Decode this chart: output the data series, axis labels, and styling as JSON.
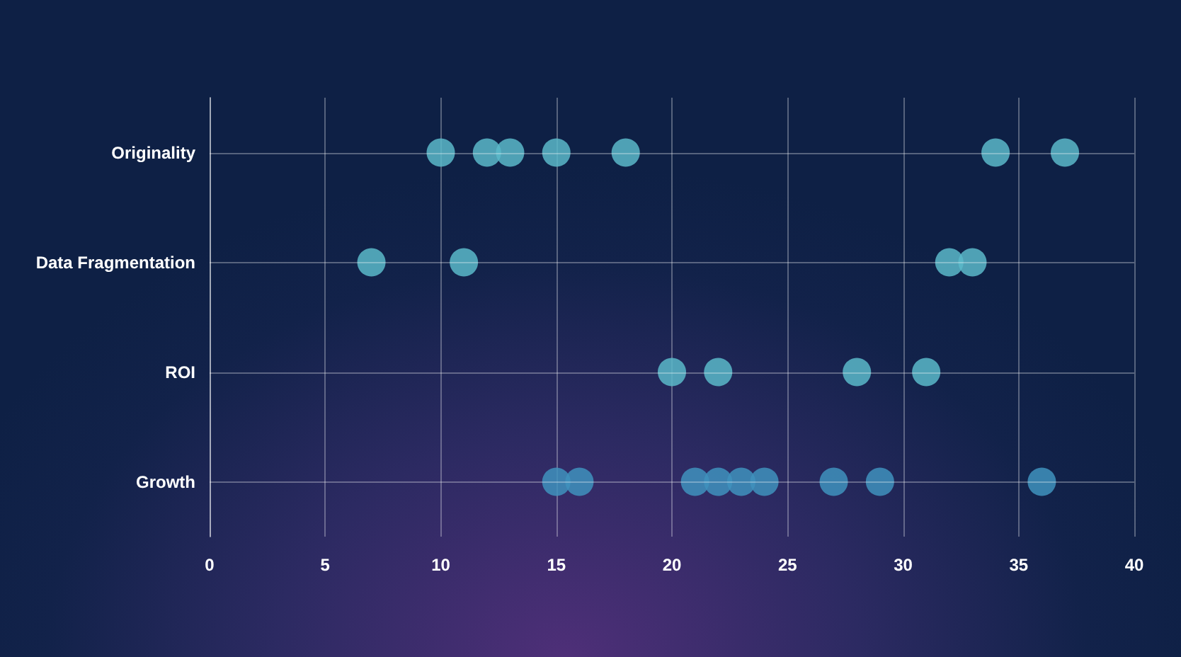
{
  "chart_data": {
    "type": "scatter",
    "orientation": "horizontal",
    "categories": [
      "Originality",
      "Data Fragmentation",
      "ROI",
      "Growth"
    ],
    "series": [
      {
        "color": "#5bb9c9",
        "x": [
          "Originality",
          "Originality",
          "Originality",
          "Originality",
          "Originality",
          "Originality",
          "Originality"
        ],
        "values": [
          10,
          12,
          13,
          15,
          18,
          34,
          37
        ]
      },
      {
        "color": "#5bb9c9",
        "x": [
          "Data Fragmentation",
          "Data Fragmentation",
          "Data Fragmentation",
          "Data Fragmentation"
        ],
        "values": [
          7,
          11,
          32,
          33
        ]
      },
      {
        "color": "#5bb9c9",
        "x": [
          "ROI",
          "ROI",
          "ROI",
          "ROI"
        ],
        "values": [
          20,
          22,
          28,
          31
        ]
      },
      {
        "color": "#3f92bd",
        "x": [
          "Growth",
          "Growth",
          "Growth",
          "Growth",
          "Growth",
          "Growth",
          "Growth",
          "Growth",
          "Growth"
        ],
        "values": [
          15,
          16,
          21,
          22,
          23,
          24,
          27,
          29,
          36
        ]
      }
    ],
    "xlim": [
      0,
      40
    ],
    "xticks": [
      0,
      5,
      10,
      15,
      20,
      25,
      30,
      35,
      40
    ],
    "grid": true,
    "marker": "circle"
  }
}
